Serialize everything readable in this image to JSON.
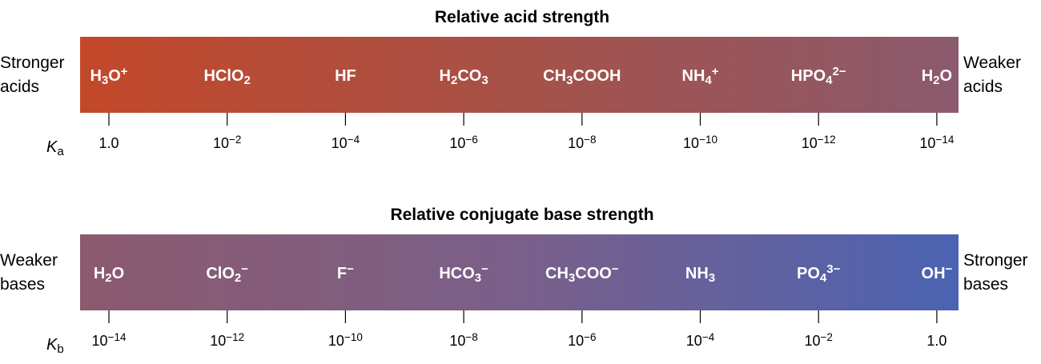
{
  "panels": [
    {
      "title": "Relative acid strength",
      "left": [
        "Stronger",
        "acids"
      ],
      "right": [
        "Weaker",
        "acids"
      ],
      "constant": [
        {
          "text": "K"
        },
        {
          "sub": "a"
        }
      ],
      "species": [
        [
          {
            "text": "H"
          },
          {
            "sub": "3"
          },
          {
            "text": "O"
          },
          {
            "sup": "+"
          }
        ],
        [
          {
            "text": "HClO"
          },
          {
            "sub": "2"
          }
        ],
        [
          {
            "text": "HF"
          }
        ],
        [
          {
            "text": "H"
          },
          {
            "sub": "2"
          },
          {
            "text": "CO"
          },
          {
            "sub": "3"
          }
        ],
        [
          {
            "text": "CH"
          },
          {
            "sub": "3"
          },
          {
            "text": "COOH"
          }
        ],
        [
          {
            "text": "NH"
          },
          {
            "sub": "4"
          },
          {
            "sup": "+"
          }
        ],
        [
          {
            "text": "HPO"
          },
          {
            "sub": "4"
          },
          {
            "sup": "2−"
          }
        ],
        [
          {
            "text": "H"
          },
          {
            "sub": "2"
          },
          {
            "text": "O"
          }
        ]
      ],
      "ticks": [
        [
          {
            "text": "1.0"
          }
        ],
        [
          {
            "text": "10"
          },
          {
            "sup": "−2"
          }
        ],
        [
          {
            "text": "10"
          },
          {
            "sup": "−4"
          }
        ],
        [
          {
            "text": "10"
          },
          {
            "sup": "−6"
          }
        ],
        [
          {
            "text": "10"
          },
          {
            "sup": "−8"
          }
        ],
        [
          {
            "text": "10"
          },
          {
            "sup": "−10"
          }
        ],
        [
          {
            "text": "10"
          },
          {
            "sup": "−12"
          }
        ],
        [
          {
            "text": "10"
          },
          {
            "sup": "−14"
          }
        ]
      ]
    },
    {
      "title": "Relative conjugate base strength",
      "left": [
        "Weaker",
        "bases"
      ],
      "right": [
        "Stronger",
        "bases"
      ],
      "constant": [
        {
          "text": "K"
        },
        {
          "sub": "b"
        }
      ],
      "species": [
        [
          {
            "text": "H"
          },
          {
            "sub": "2"
          },
          {
            "text": "O"
          }
        ],
        [
          {
            "text": "ClO"
          },
          {
            "sub": "2"
          },
          {
            "sup": "−"
          }
        ],
        [
          {
            "text": "F"
          },
          {
            "sup": "−"
          }
        ],
        [
          {
            "text": "HCO"
          },
          {
            "sub": "3"
          },
          {
            "sup": "−"
          }
        ],
        [
          {
            "text": "CH"
          },
          {
            "sub": "3"
          },
          {
            "text": "COO"
          },
          {
            "sup": "−"
          }
        ],
        [
          {
            "text": "NH"
          },
          {
            "sub": "3"
          }
        ],
        [
          {
            "text": "PO"
          },
          {
            "sub": "4"
          },
          {
            "sup": "3−"
          }
        ],
        [
          {
            "text": "OH"
          },
          {
            "sup": "−"
          }
        ]
      ],
      "ticks": [
        [
          {
            "text": "10"
          },
          {
            "sup": "−14"
          }
        ],
        [
          {
            "text": "10"
          },
          {
            "sup": "−12"
          }
        ],
        [
          {
            "text": "10"
          },
          {
            "sup": "−10"
          }
        ],
        [
          {
            "text": "10"
          },
          {
            "sup": "−8"
          }
        ],
        [
          {
            "text": "10"
          },
          {
            "sup": "−6"
          }
        ],
        [
          {
            "text": "10"
          },
          {
            "sup": "−4"
          }
        ],
        [
          {
            "text": "10"
          },
          {
            "sup": "−2"
          }
        ],
        [
          {
            "text": "1.0"
          }
        ]
      ]
    }
  ]
}
